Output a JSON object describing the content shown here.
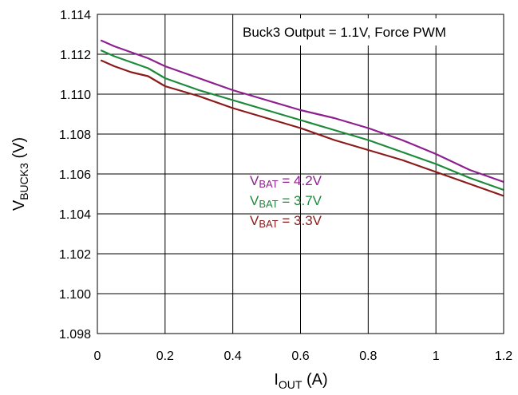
{
  "chart_data": {
    "type": "line",
    "title": "",
    "annotation": "Buck3 Output = 1.1V, Force PWM",
    "xlabel": {
      "main": "I",
      "sub": "OUT",
      "unit": " (A)"
    },
    "ylabel": {
      "main": "V",
      "sub": "BUCK3",
      "unit": " (V)"
    },
    "xlim": [
      0,
      1.2
    ],
    "ylim": [
      1.098,
      1.114
    ],
    "x_ticks": [
      "0",
      "0.2",
      "0.4",
      "0.6",
      "0.8",
      "1",
      "1.2"
    ],
    "y_ticks": [
      "1.098",
      "1.100",
      "1.102",
      "1.104",
      "1.106",
      "1.108",
      "1.110",
      "1.112",
      "1.114"
    ],
    "grid": true,
    "series": [
      {
        "name": "VBAT = 4.2V",
        "label_main": "V",
        "label_sub": "BAT",
        "label_value": " = 4.2V",
        "color": "#8e1f8f",
        "points": [
          [
            0.01,
            1.1127
          ],
          [
            0.05,
            1.1124
          ],
          [
            0.1,
            1.1121
          ],
          [
            0.15,
            1.1118
          ],
          [
            0.2,
            1.1114
          ],
          [
            0.3,
            1.1108
          ],
          [
            0.4,
            1.1102
          ],
          [
            0.5,
            1.1097
          ],
          [
            0.6,
            1.1092
          ],
          [
            0.7,
            1.1088
          ],
          [
            0.8,
            1.1083
          ],
          [
            0.9,
            1.1077
          ],
          [
            1.0,
            1.107
          ],
          [
            1.1,
            1.1062
          ],
          [
            1.2,
            1.1056
          ]
        ]
      },
      {
        "name": "VBAT = 3.7V",
        "label_main": "V",
        "label_sub": "BAT",
        "label_value": " = 3.7V",
        "color": "#1d8a3a",
        "points": [
          [
            0.01,
            1.1122
          ],
          [
            0.05,
            1.1119
          ],
          [
            0.1,
            1.1116
          ],
          [
            0.15,
            1.1113
          ],
          [
            0.2,
            1.1108
          ],
          [
            0.3,
            1.1102
          ],
          [
            0.4,
            1.1097
          ],
          [
            0.5,
            1.1092
          ],
          [
            0.6,
            1.1087
          ],
          [
            0.7,
            1.1082
          ],
          [
            0.8,
            1.1077
          ],
          [
            0.9,
            1.1071
          ],
          [
            1.0,
            1.1065
          ],
          [
            1.1,
            1.1058
          ],
          [
            1.2,
            1.1052
          ]
        ]
      },
      {
        "name": "VBAT = 3.3V",
        "label_main": "V",
        "label_sub": "BAT",
        "label_value": " = 3.3V",
        "color": "#8b1a1a",
        "points": [
          [
            0.01,
            1.1117
          ],
          [
            0.05,
            1.1114
          ],
          [
            0.1,
            1.1111
          ],
          [
            0.15,
            1.1109
          ],
          [
            0.2,
            1.1104
          ],
          [
            0.3,
            1.1099
          ],
          [
            0.4,
            1.1093
          ],
          [
            0.5,
            1.1088
          ],
          [
            0.6,
            1.1083
          ],
          [
            0.7,
            1.1077
          ],
          [
            0.8,
            1.1072
          ],
          [
            0.9,
            1.1067
          ],
          [
            1.0,
            1.1061
          ],
          [
            1.1,
            1.1055
          ],
          [
            1.2,
            1.1049
          ]
        ]
      }
    ]
  }
}
